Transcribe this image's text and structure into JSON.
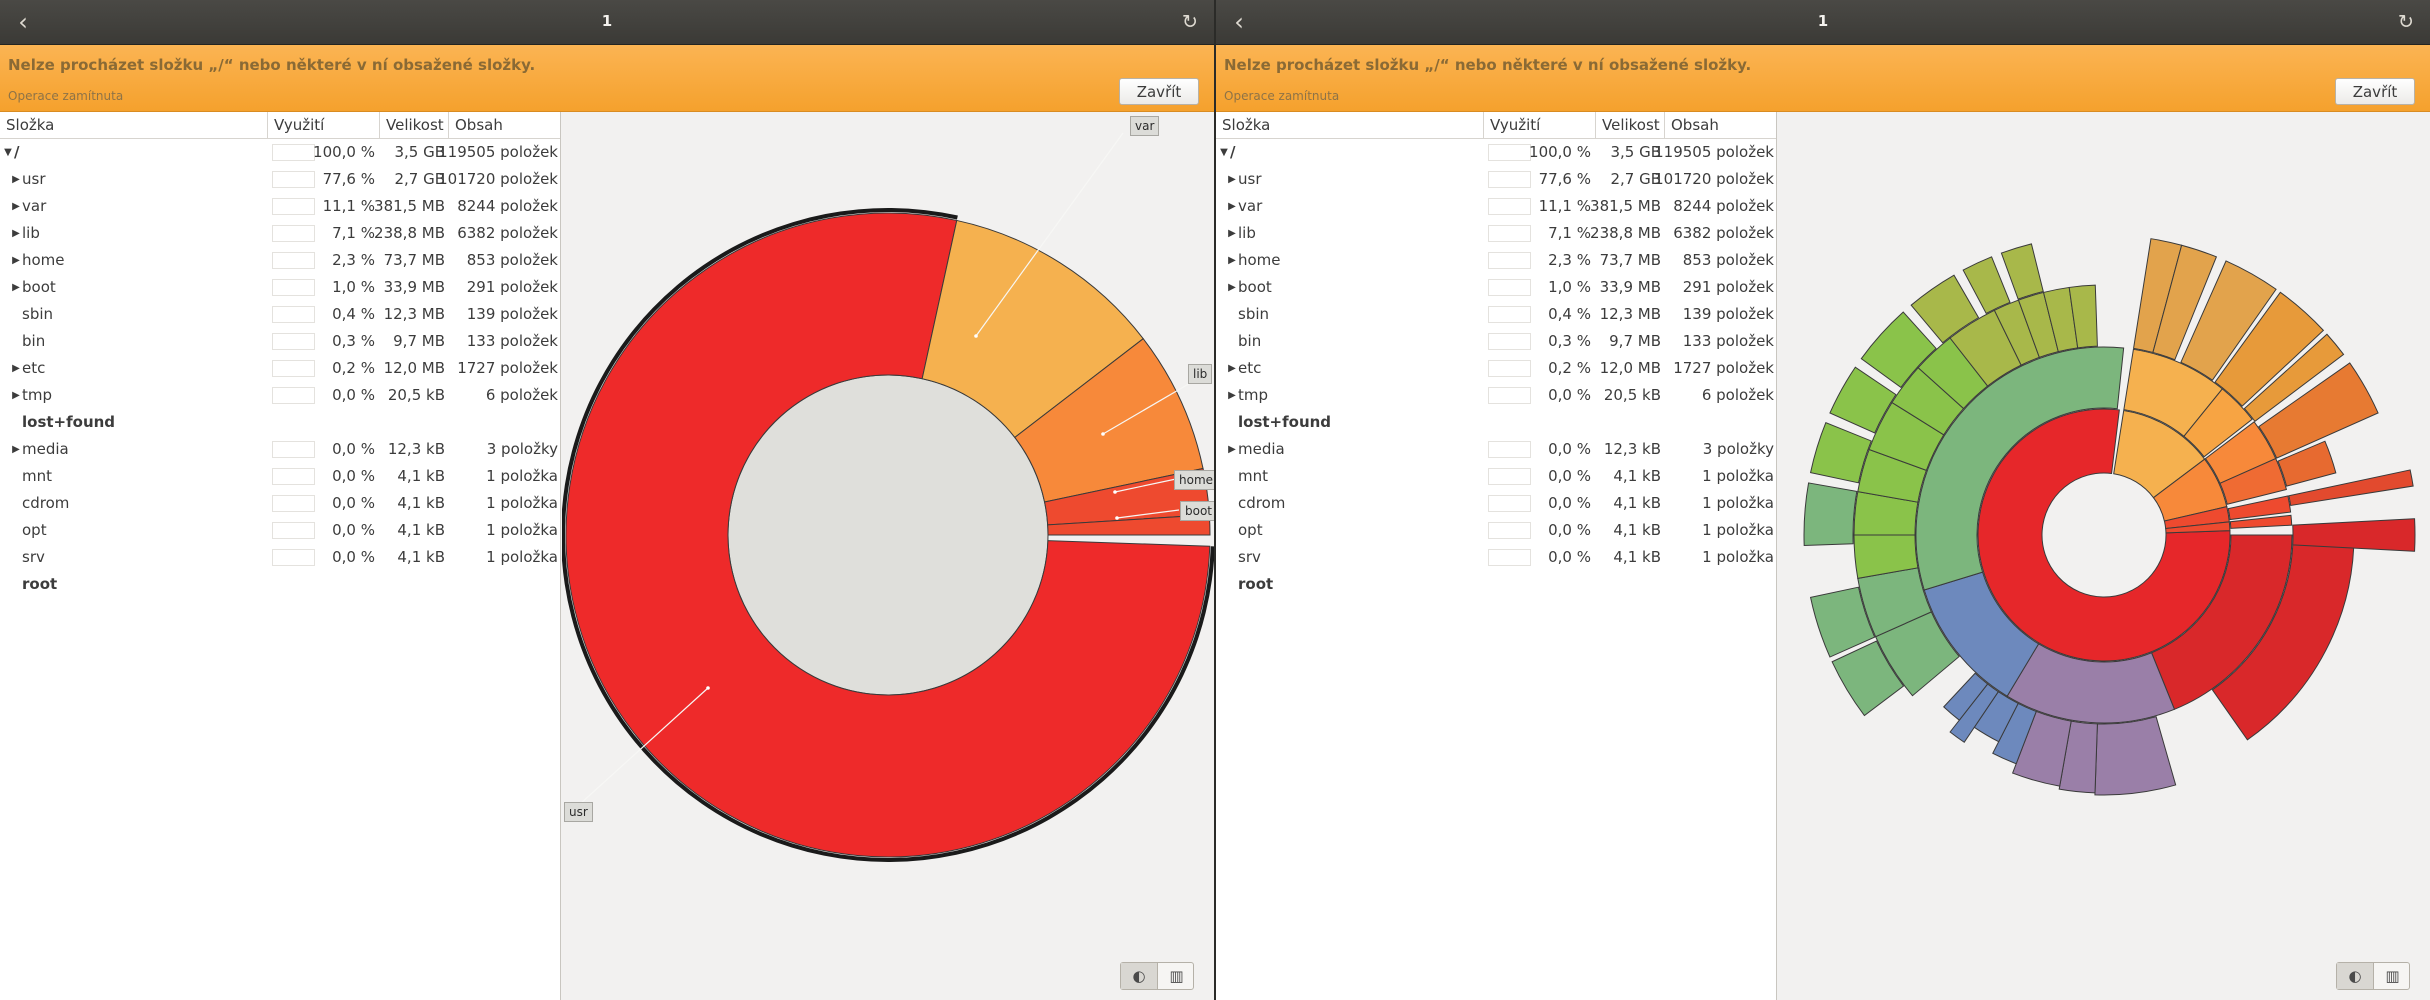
{
  "panes": [
    {
      "header": {
        "title": "1",
        "back_icon": "chevron-left-icon",
        "reload_icon": "reload-icon"
      },
      "infobar": {
        "title": "Nelze procházet složku „/“ nebo některé v ní obsažené složky.",
        "subtitle": "Operace zamítnuta",
        "close_label": "Zavřít"
      },
      "tree": {
        "columns": [
          "Složka",
          "Využití",
          "Velikost",
          "Obsah"
        ],
        "rows": [
          {
            "name": "/",
            "expander": "open",
            "level": 0,
            "usage": "100,0 %",
            "size": "3,5 GB",
            "contents": "119505 položek",
            "bold": true
          },
          {
            "name": "usr",
            "expander": "closed",
            "level": 1,
            "usage": "77,6 %",
            "size": "2,7 GB",
            "contents": "101720 položek"
          },
          {
            "name": "var",
            "expander": "closed",
            "level": 1,
            "usage": "11,1 %",
            "size": "381,5 MB",
            "contents": "8244 položek"
          },
          {
            "name": "lib",
            "expander": "closed",
            "level": 1,
            "usage": "7,1 %",
            "size": "238,8 MB",
            "contents": "6382 položek"
          },
          {
            "name": "home",
            "expander": "closed",
            "level": 1,
            "usage": "2,3 %",
            "size": "73,7 MB",
            "contents": "853 položek"
          },
          {
            "name": "boot",
            "expander": "closed",
            "level": 1,
            "usage": "1,0 %",
            "size": "33,9 MB",
            "contents": "291 položek"
          },
          {
            "name": "sbin",
            "expander": "none",
            "level": 1,
            "usage": "0,4 %",
            "size": "12,3 MB",
            "contents": "139 položek"
          },
          {
            "name": "bin",
            "expander": "none",
            "level": 1,
            "usage": "0,3 %",
            "size": "9,7 MB",
            "contents": "133 položek"
          },
          {
            "name": "etc",
            "expander": "closed",
            "level": 1,
            "usage": "0,2 %",
            "size": "12,0 MB",
            "contents": "1727 položek"
          },
          {
            "name": "tmp",
            "expander": "closed",
            "level": 1,
            "usage": "0,0 %",
            "size": "20,5 kB",
            "contents": "6 položek"
          },
          {
            "name": "lost+found",
            "expander": "none",
            "level": 1,
            "usage": "",
            "size": "",
            "contents": "",
            "bold": true,
            "nobar": true
          },
          {
            "name": "media",
            "expander": "closed",
            "level": 1,
            "usage": "0,0 %",
            "size": "12,3 kB",
            "contents": "3 položky"
          },
          {
            "name": "mnt",
            "expander": "none",
            "level": 1,
            "usage": "0,0 %",
            "size": "4,1 kB",
            "contents": "1 položka"
          },
          {
            "name": "cdrom",
            "expander": "none",
            "level": 1,
            "usage": "0,0 %",
            "size": "4,1 kB",
            "contents": "1 položka"
          },
          {
            "name": "opt",
            "expander": "none",
            "level": 1,
            "usage": "0,0 %",
            "size": "4,1 kB",
            "contents": "1 položka"
          },
          {
            "name": "srv",
            "expander": "none",
            "level": 1,
            "usage": "0,0 %",
            "size": "4,1 kB",
            "contents": "1 položka"
          },
          {
            "name": "root",
            "expander": "none",
            "level": 1,
            "usage": "",
            "size": "",
            "contents": "",
            "bold": true,
            "nobar": true
          }
        ]
      },
      "chart": {
        "type": "ring",
        "labels": [
          "var",
          "lib",
          "home",
          "boot",
          "usr"
        ],
        "segments": [
          {
            "name": "usr",
            "share": 77.6,
            "color": "#ee2a2a"
          },
          {
            "name": "var",
            "share": 11.1,
            "color": "#f5b14f"
          },
          {
            "name": "lib",
            "share": 7.1,
            "color": "#f7893a"
          },
          {
            "name": "home",
            "share": 2.3,
            "color": "#ee4a2f"
          },
          {
            "name": "boot",
            "share": 1.0,
            "color": "#ee4a2f"
          }
        ]
      },
      "view_switch": {
        "ring_icon": "ring-chart-icon",
        "treemap_icon": "treemap-icon"
      }
    },
    {
      "header": {
        "title": "1",
        "back_icon": "chevron-left-icon",
        "reload_icon": "reload-icon"
      },
      "infobar": {
        "title": "Nelze procházet složku „/“ nebo některé v ní obsažené složky.",
        "subtitle": "Operace zamítnuta",
        "close_label": "Zavřít"
      },
      "tree": {
        "columns": [
          "Složka",
          "Využití",
          "Velikost",
          "Obsah"
        ],
        "rows": [
          {
            "name": "/",
            "expander": "open",
            "level": 0,
            "usage": "100,0 %",
            "size": "3,5 GB",
            "contents": "119505 položek",
            "bold": true
          },
          {
            "name": "usr",
            "expander": "closed",
            "level": 1,
            "usage": "77,6 %",
            "size": "2,7 GB",
            "contents": "101720 položek"
          },
          {
            "name": "var",
            "expander": "closed",
            "level": 1,
            "usage": "11,1 %",
            "size": "381,5 MB",
            "contents": "8244 položek"
          },
          {
            "name": "lib",
            "expander": "closed",
            "level": 1,
            "usage": "7,1 %",
            "size": "238,8 MB",
            "contents": "6382 položek"
          },
          {
            "name": "home",
            "expander": "closed",
            "level": 1,
            "usage": "2,3 %",
            "size": "73,7 MB",
            "contents": "853 položek"
          },
          {
            "name": "boot",
            "expander": "closed",
            "level": 1,
            "usage": "1,0 %",
            "size": "33,9 MB",
            "contents": "291 položek"
          },
          {
            "name": "sbin",
            "expander": "none",
            "level": 1,
            "usage": "0,4 %",
            "size": "12,3 MB",
            "contents": "139 položek"
          },
          {
            "name": "bin",
            "expander": "none",
            "level": 1,
            "usage": "0,3 %",
            "size": "9,7 MB",
            "contents": "133 položek"
          },
          {
            "name": "etc",
            "expander": "closed",
            "level": 1,
            "usage": "0,2 %",
            "size": "12,0 MB",
            "contents": "1727 položek"
          },
          {
            "name": "tmp",
            "expander": "closed",
            "level": 1,
            "usage": "0,0 %",
            "size": "20,5 kB",
            "contents": "6 položek"
          },
          {
            "name": "lost+found",
            "expander": "none",
            "level": 1,
            "usage": "",
            "size": "",
            "contents": "",
            "bold": true,
            "nobar": true
          },
          {
            "name": "media",
            "expander": "closed",
            "level": 1,
            "usage": "0,0 %",
            "size": "12,3 kB",
            "contents": "3 položky"
          },
          {
            "name": "mnt",
            "expander": "none",
            "level": 1,
            "usage": "0,0 %",
            "size": "4,1 kB",
            "contents": "1 položka"
          },
          {
            "name": "cdrom",
            "expander": "none",
            "level": 1,
            "usage": "0,0 %",
            "size": "4,1 kB",
            "contents": "1 položka"
          },
          {
            "name": "opt",
            "expander": "none",
            "level": 1,
            "usage": "0,0 %",
            "size": "4,1 kB",
            "contents": "1 položka"
          },
          {
            "name": "srv",
            "expander": "none",
            "level": 1,
            "usage": "0,0 %",
            "size": "4,1 kB",
            "contents": "1 položka"
          },
          {
            "name": "root",
            "expander": "none",
            "level": 1,
            "usage": "",
            "size": "",
            "contents": "",
            "bold": true,
            "nobar": true
          }
        ]
      },
      "chart": {
        "type": "sunburst",
        "segments": [
          {
            "name": "usr",
            "share": 77.6,
            "color": "#e6272a"
          },
          {
            "name": "var",
            "share": 11.1,
            "color": "#f5b14f"
          },
          {
            "name": "lib",
            "share": 7.1,
            "color": "#f7893a"
          },
          {
            "name": "home",
            "share": 2.3,
            "color": "#ee4a2f"
          },
          {
            "name": "boot",
            "share": 1.0,
            "color": "#ee4a2f"
          }
        ],
        "outer_palette": [
          "#7cb67d",
          "#8ac34a",
          "#a8b84a",
          "#9a7fa8",
          "#6d89bd",
          "#e2a34c",
          "#e77a32",
          "#e24a2e",
          "#d9282a"
        ]
      },
      "view_switch": {
        "ring_icon": "ring-chart-icon",
        "treemap_icon": "treemap-icon"
      }
    }
  ]
}
